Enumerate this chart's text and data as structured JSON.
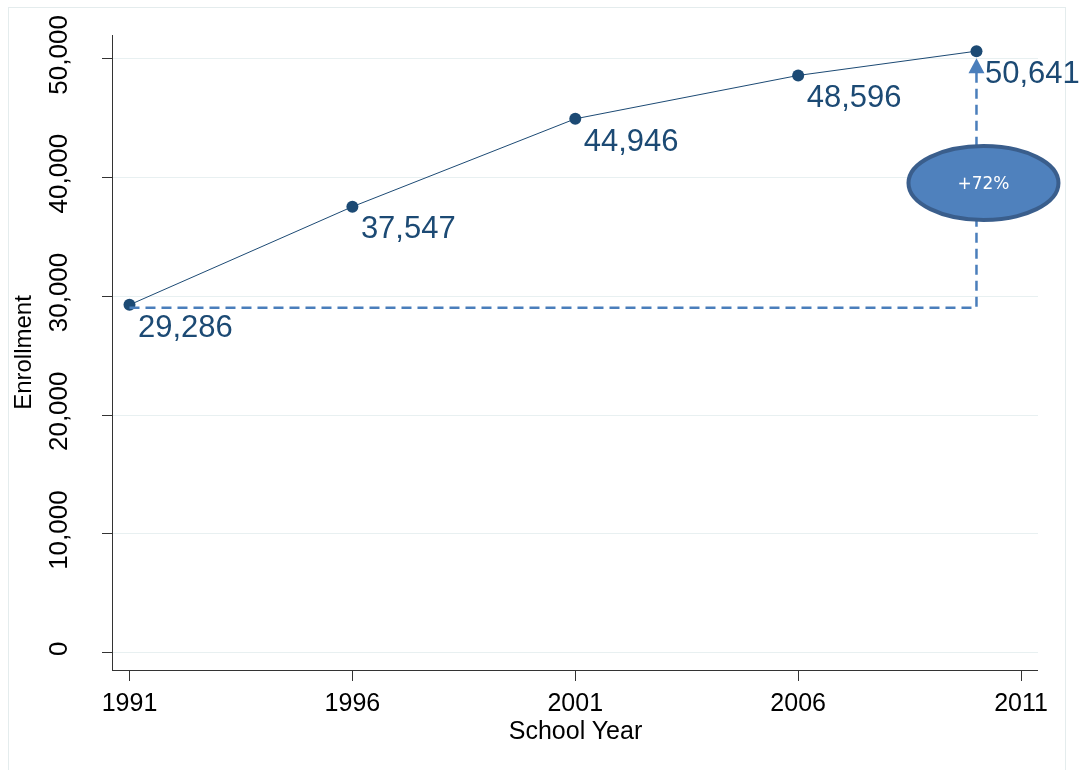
{
  "chart_data": {
    "type": "line",
    "xlabel": "School Year",
    "ylabel": "Enrollment",
    "x": [
      1991,
      1996,
      2001,
      2006,
      2010
    ],
    "series": [
      {
        "color": "#1c4a74",
        "values": [
          29286,
          37547,
          44946,
          48596,
          50641
        ],
        "value_labels": [
          "29,286",
          "37,547",
          "44,946",
          "48,596",
          "50,641"
        ]
      }
    ],
    "xlim": [
      1990.63,
      2011.38
    ],
    "xticks": [
      1991,
      1996,
      2001,
      2006,
      2011
    ],
    "ylim": [
      -1450,
      52000
    ],
    "yticks": [
      0,
      {
        "value": 10000,
        "label": "10,000"
      },
      {
        "value": 20000,
        "label": "20,000"
      },
      {
        "value": 30000,
        "label": "30,000"
      },
      {
        "value": 40000,
        "label": "40,000"
      },
      {
        "value": 50000,
        "label": "50,000"
      }
    ],
    "grid": "y",
    "marker": "circle",
    "line_style": "solid",
    "annotations": [
      "+72%"
    ]
  }
}
